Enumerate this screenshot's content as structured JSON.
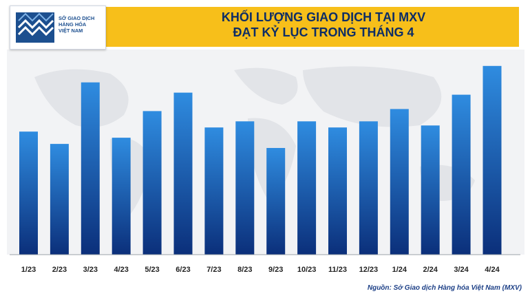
{
  "header": {
    "title_line1": "KHỐI LƯỢNG GIAO DỊCH TẠI MXV",
    "title_line2": "ĐẠT KỶ LỤC TRONG THÁNG 4"
  },
  "logo": {
    "line1": "SỞ GIAO DỊCH",
    "line2": "HÀNG HÓA",
    "line3": "VIỆT NAM"
  },
  "source_note": "Nguồn: Sở Giao dịch Hàng hóa Việt Nam (MXV)",
  "colors": {
    "header_band": "#f7bf1a",
    "title_text": "#0d2d66",
    "bar_top": "#2f8ce0",
    "bar_bottom": "#0b2f7a"
  },
  "chart_data": {
    "type": "bar",
    "title": "KHỐI LƯỢNG GIAO DỊCH TẠI MXV ĐẠT KỶ LỤC TRONG THÁNG 4",
    "xlabel": "",
    "ylabel": "",
    "grid": false,
    "legend": "none",
    "ylim": [
      0,
      100
    ],
    "categories": [
      "1/23",
      "2/23",
      "3/23",
      "4/23",
      "5/23",
      "6/23",
      "7/23",
      "8/23",
      "9/23",
      "10/23",
      "11/23",
      "12/23",
      "1/24",
      "2/24",
      "3/24",
      "4/24"
    ],
    "values": [
      60,
      54,
      84,
      57,
      70,
      79,
      62,
      65,
      52,
      65,
      62,
      65,
      71,
      63,
      78,
      92
    ]
  }
}
